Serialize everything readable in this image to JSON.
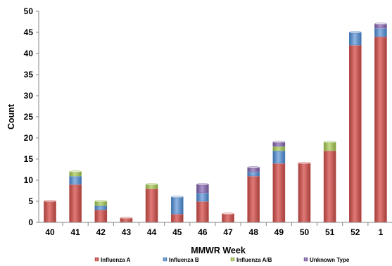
{
  "chart_data": {
    "type": "bar",
    "stacked": true,
    "xlabel": "MMWR Week",
    "ylabel": "Count",
    "ylim": [
      0,
      50
    ],
    "yticks": [
      0,
      5,
      10,
      15,
      20,
      25,
      30,
      35,
      40,
      45,
      50
    ],
    "grid": false,
    "legend_position": "bottom",
    "categories": [
      "40",
      "41",
      "42",
      "43",
      "44",
      "45",
      "46",
      "47",
      "48",
      "49",
      "50",
      "51",
      "52",
      "1"
    ],
    "series": [
      {
        "name": "Influenza A",
        "color": "#c0504d",
        "values": [
          5,
          9,
          3,
          1,
          8,
          2,
          5,
          2,
          11,
          14,
          14,
          17,
          42,
          44
        ]
      },
      {
        "name": "Influenza B",
        "color": "#4f81bd",
        "values": [
          0,
          2,
          1,
          0,
          0,
          4,
          2,
          0,
          1,
          3,
          0,
          0,
          3,
          2
        ]
      },
      {
        "name": "Influenza A/B",
        "color": "#9bbb59",
        "values": [
          0,
          1,
          1,
          0,
          1,
          0,
          0,
          0,
          0,
          1,
          0,
          2,
          0,
          0
        ]
      },
      {
        "name": "Unknown Type",
        "color": "#8064a2",
        "values": [
          0,
          0,
          0,
          0,
          0,
          0,
          2,
          0,
          1,
          1,
          0,
          0,
          0,
          1
        ]
      }
    ]
  }
}
